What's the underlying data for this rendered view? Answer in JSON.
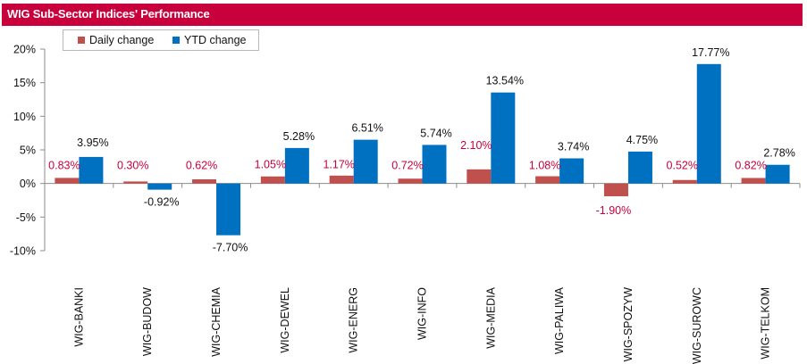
{
  "header": {
    "title": "WIG Sub-Sector Indices' Performance"
  },
  "colors": {
    "title_bg": "#c8003c",
    "daily": "#c0504d",
    "ytd": "#0070c0",
    "daily_label": "#c8003c"
  },
  "chart_data": {
    "type": "bar",
    "title": "WIG Sub-Sector Indices' Performance",
    "categories": [
      "WIG-BANKI",
      "WIG-BUDOW",
      "WIG-CHEMIA",
      "WIG-DEWEL",
      "WIG-ENERG",
      "WIG-INFO",
      "WIG-MEDIA",
      "WIG-PALIWA",
      "WIG-SPOZYW",
      "WIG-SUROWC",
      "WIG-TELKOM"
    ],
    "series": [
      {
        "name": "Daily change",
        "values": [
          0.83,
          0.3,
          0.62,
          1.05,
          1.17,
          0.72,
          2.1,
          1.08,
          -1.9,
          0.52,
          0.82
        ],
        "labels": [
          "0.83%",
          "0.30%",
          "0.62%",
          "1.05%",
          "1.17%",
          "0.72%",
          "2.10%",
          "1.08%",
          "-1.90%",
          "0.52%",
          "0.82%"
        ]
      },
      {
        "name": "YTD change",
        "values": [
          3.95,
          -0.92,
          -7.7,
          5.28,
          6.51,
          5.74,
          13.54,
          3.74,
          4.75,
          17.77,
          2.78
        ],
        "labels": [
          "3.95%",
          "-0.92%",
          "-7.70%",
          "5.28%",
          "6.51%",
          "5.74%",
          "13.54%",
          "3.74%",
          "4.75%",
          "17.77%",
          "2.78%"
        ]
      }
    ],
    "y_ticks": [
      -10,
      -5,
      0,
      5,
      10,
      15,
      20
    ],
    "y_tick_labels": [
      "-10%",
      "-5%",
      "0%",
      "5%",
      "10%",
      "15%",
      "20%"
    ],
    "ylim": [
      -10,
      20
    ],
    "xlabel": "",
    "ylabel": "",
    "grid": false,
    "legend": "top-left"
  }
}
